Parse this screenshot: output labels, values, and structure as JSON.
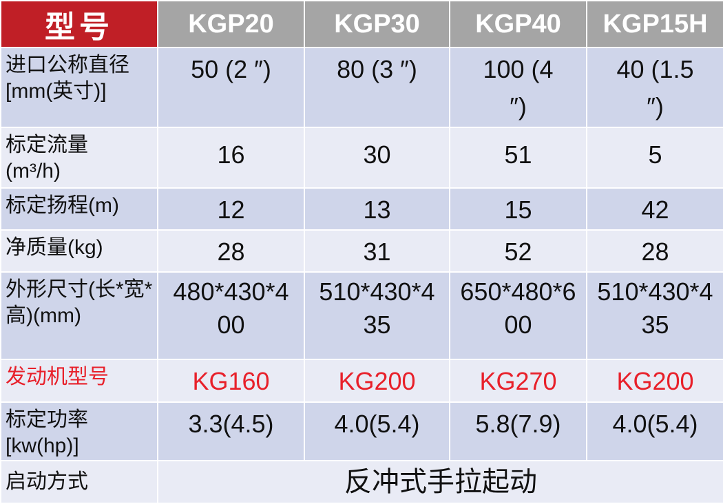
{
  "header": {
    "label": "型号",
    "models": [
      "KGP20",
      "KGP30",
      "KGP40",
      "KGP15H"
    ]
  },
  "rows": [
    {
      "label": "进口公称直径[mm(英寸)]",
      "values": [
        "50 (2 ″)",
        "80 (3 ″)",
        "100 (4 ″)",
        "40 (1.5 ″)"
      ]
    },
    {
      "label": "标定流量(m³/h)",
      "values": [
        "16",
        "30",
        "51",
        "5"
      ]
    },
    {
      "label": "标定扬程(m)",
      "values": [
        "12",
        "13",
        "15",
        "42"
      ]
    },
    {
      "label": "净质量(kg)",
      "values": [
        "28",
        "31",
        "52",
        "28"
      ]
    },
    {
      "label": "外形尺寸(长*宽*高)(mm)",
      "values": [
        "480*430*400",
        "510*430*435",
        "650*480*600",
        "510*430*435"
      ]
    },
    {
      "label": "发动机型号",
      "values": [
        "KG160",
        "KG200",
        "KG270",
        "KG200"
      ]
    },
    {
      "label": "标定功率[kw(hp)]",
      "values": [
        "3.3(4.5)",
        "4.0(5.4)",
        "5.8(7.9)",
        "4.0(5.4)"
      ]
    },
    {
      "label": "启动方式",
      "value": "反冲式手拉起动"
    }
  ],
  "colors": {
    "header_red": "#c01f26",
    "header_gray": "#a5a5a5",
    "row_dark": "#cfd5ea",
    "row_light": "#e9ebf5",
    "highlight_red": "#e8202a"
  }
}
